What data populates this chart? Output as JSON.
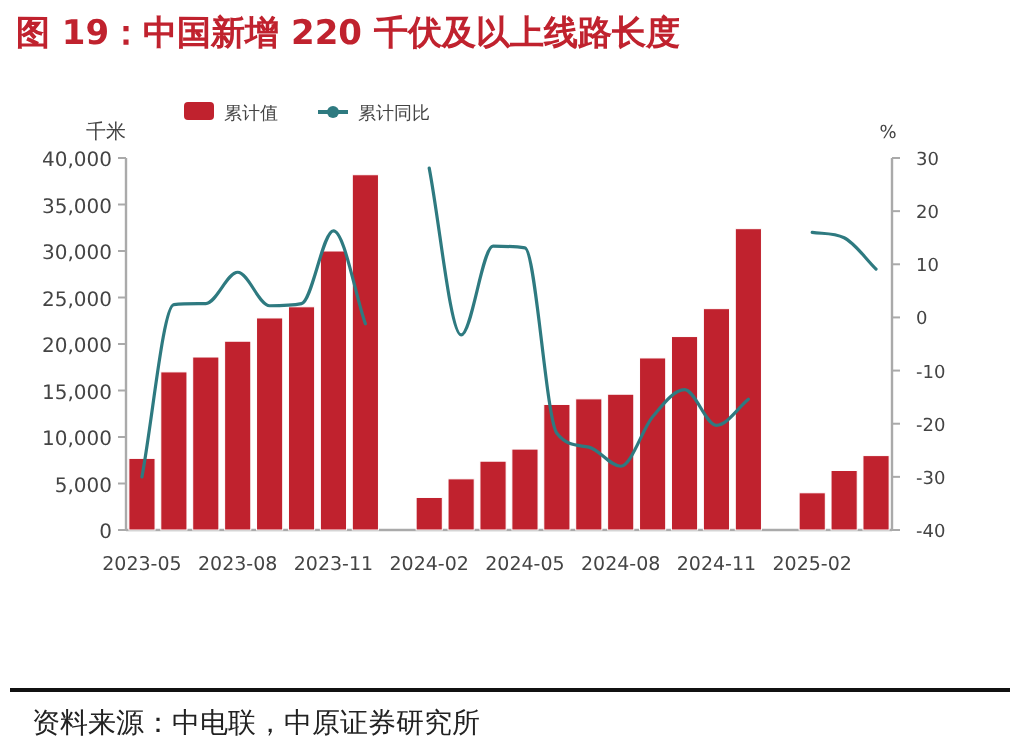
{
  "chart_data": {
    "type": "bar",
    "title": "图 19：中国新增 220 千伏及以上线路长度",
    "ylabel": "千米",
    "y2label": "%",
    "categories": [
      "2023-05",
      null,
      null,
      "2023-08",
      null,
      null,
      "2023-11",
      null,
      null,
      "2024-02",
      null,
      null,
      "2024-05",
      null,
      null,
      "2024-08",
      null,
      null,
      "2024-11",
      null,
      null,
      "2025-02",
      null,
      null
    ],
    "series": [
      {
        "name": "累计值",
        "color": "#c0222e",
        "values": [
          7700,
          17000,
          18600,
          20300,
          22800,
          24000,
          30000,
          38200,
          null,
          3500,
          5500,
          7400,
          8700,
          13500,
          14100,
          14600,
          18500,
          20800,
          23800,
          32400,
          null,
          4000,
          6400,
          8000
        ]
      },
      {
        "name": "累计同比",
        "type": "line",
        "axis": "y2",
        "color": "#2e7a80",
        "values": [
          -30,
          2.4,
          2.6,
          8.5,
          2.2,
          2.6,
          16.3,
          -1.2,
          null,
          28.1,
          -3.3,
          13.4,
          13.1,
          -21.8,
          -24.4,
          -28,
          -18.7,
          -13.6,
          -20.3,
          -15.4,
          null,
          16,
          15,
          9.1
        ]
      }
    ],
    "ylim": [
      0,
      40000
    ],
    "yticks": [
      0,
      {
        "value": 5000,
        "label": "5,000"
      },
      {
        "value": 10000,
        "label": "10,000"
      },
      {
        "value": 15000,
        "label": "15,000"
      },
      {
        "value": 20000,
        "label": "20,000"
      },
      {
        "value": 25000,
        "label": "25,000"
      },
      {
        "value": 30000,
        "label": "30,000"
      },
      {
        "value": 35000,
        "label": "35,000"
      },
      {
        "value": 40000,
        "label": "40,000"
      }
    ],
    "y2lim": [
      -40,
      30
    ],
    "y2ticks": [
      -40,
      -30,
      -20,
      -10,
      0,
      10,
      20,
      30
    ],
    "legend": "top",
    "grid": false,
    "annotations": [
      "资料来源：中电联，中原证券研究所"
    ]
  }
}
